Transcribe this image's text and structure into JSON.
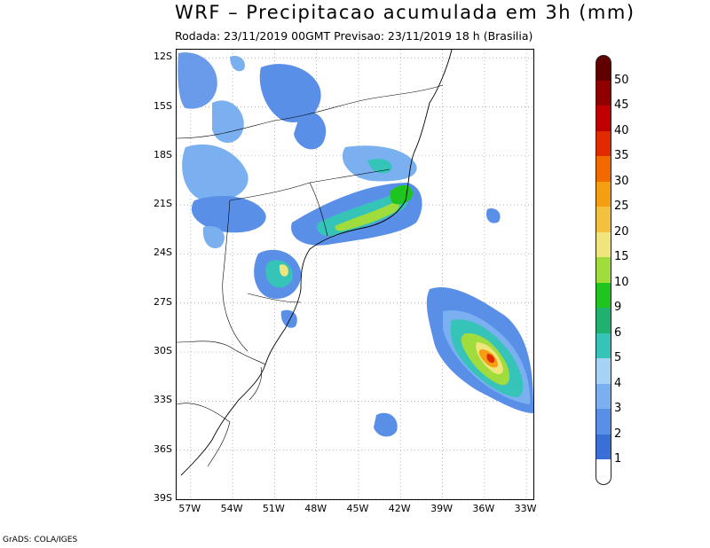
{
  "header": {
    "title": "WRF – Precipitacao acumulada em 3h (mm)",
    "subtitle": "Rodada: 23/11/2019 00GMT Previsao: 23/11/2019 18 h (Brasilia)"
  },
  "map": {
    "lat_labels": [
      "12S",
      "15S",
      "18S",
      "21S",
      "24S",
      "27S",
      "30S",
      "33S",
      "36S",
      "39S"
    ],
    "lon_labels": [
      "57W",
      "54W",
      "51W",
      "48W",
      "45W",
      "42W",
      "39W",
      "36W",
      "33W"
    ],
    "lat_range": [
      -39,
      -11.5
    ],
    "lon_range": [
      -58,
      -32.5
    ]
  },
  "legend": {
    "labels": [
      "1",
      "2",
      "3",
      "4",
      "5",
      "6",
      "9",
      "10",
      "15",
      "20",
      "25",
      "30",
      "35",
      "40",
      "45",
      "50"
    ],
    "colors": [
      "#ffffff",
      "#3a6fd8",
      "#5a8fe8",
      "#7ab0f0",
      "#a6d2f6",
      "#36c4b8",
      "#20b070",
      "#1fc41f",
      "#a0dc3c",
      "#f0e47c",
      "#f4c040",
      "#f49e10",
      "#f06a00",
      "#e02a00",
      "#c00000",
      "#900000",
      "#600000"
    ]
  },
  "credit": "GrADS: COLA/IGES"
}
